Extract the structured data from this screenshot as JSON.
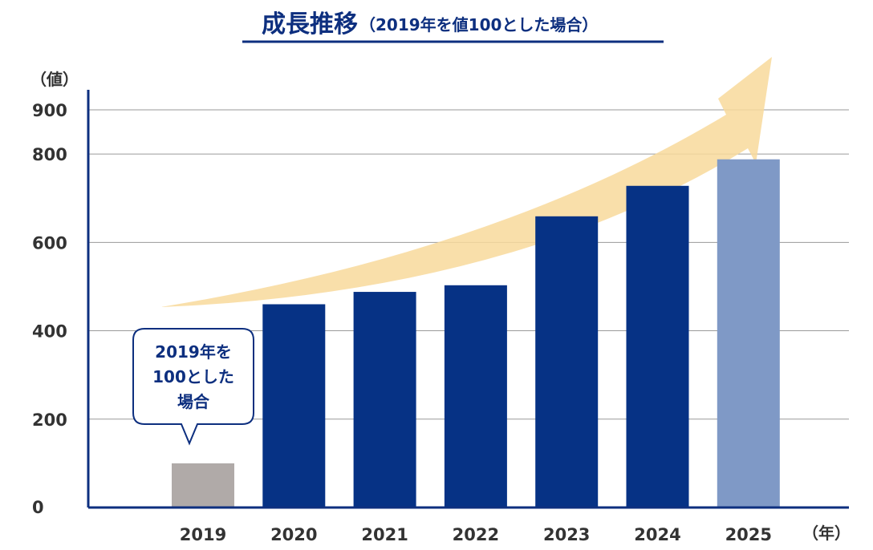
{
  "chart_data": {
    "type": "bar",
    "title": "成長推移",
    "subtitle": "（2019年を値100とした場合）",
    "ylabel": "（値）",
    "xlabel": "（年）",
    "ylim": [
      0,
      900
    ],
    "yticks": [
      0,
      200,
      400,
      600,
      800,
      900
    ],
    "grid": true,
    "categories": [
      "2019",
      "2020",
      "2021",
      "2022",
      "2023",
      "2024",
      "2025"
    ],
    "values": [
      100,
      460,
      488,
      503,
      659,
      728,
      788
    ],
    "bar_colors": [
      "#b0aaa8",
      "#063285",
      "#063285",
      "#063285",
      "#063285",
      "#063285",
      "#7f99c6"
    ],
    "annotation": {
      "lines": [
        "2019年を",
        "100とした",
        "場合"
      ],
      "target": "2019"
    },
    "trend_arrow_color": "#f8d99b",
    "axis_color": "#0d2f7f"
  }
}
